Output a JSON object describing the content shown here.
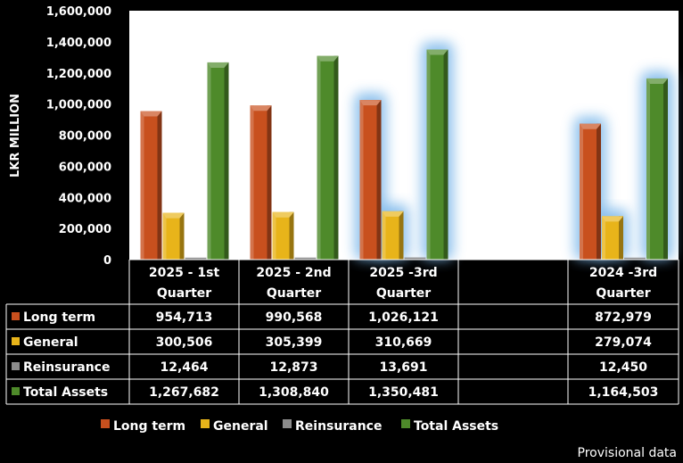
{
  "chart_data": {
    "type": "bar",
    "ylabel": "LKR MILLION",
    "ylim": [
      0,
      1600000
    ],
    "yticks": [
      0,
      200000,
      400000,
      600000,
      800000,
      1000000,
      1200000,
      1400000,
      1600000
    ],
    "ytick_labels": [
      "0",
      "200,000",
      "400,000",
      "600,000",
      "800,000",
      "1,000,000",
      "1,200,000",
      "1,400,000",
      "1,600,000"
    ],
    "grid": false,
    "legend": "bottom",
    "categories": [
      "2025 - 1st Quarter",
      "2025 - 2nd Quarter",
      "2025 -3rd Quarter",
      "",
      "2024 -3rd Quarter"
    ],
    "category_lines": [
      [
        "2025 - 1st",
        "Quarter"
      ],
      [
        "2025 - 2nd",
        "Quarter"
      ],
      [
        "2025 -3rd",
        "Quarter"
      ],
      [
        "",
        ""
      ],
      [
        "2024 -3rd",
        "Quarter"
      ]
    ],
    "series": [
      {
        "name": "Long term",
        "color": "#c8501e",
        "values": [
          954713,
          990568,
          1026121,
          null,
          872979
        ],
        "labels": [
          "954,713",
          "990,568",
          "1,026,121",
          "",
          "872,979"
        ]
      },
      {
        "name": "General",
        "color": "#e8b41a",
        "values": [
          300506,
          305399,
          310669,
          null,
          279074
        ],
        "labels": [
          "300,506",
          "305,399",
          "310,669",
          "",
          "279,074"
        ]
      },
      {
        "name": "Reinsurance",
        "color": "#8c8c8c",
        "values": [
          12464,
          12873,
          13691,
          null,
          12450
        ],
        "labels": [
          "12,464",
          "12,873",
          "13,691",
          "",
          "12,450"
        ]
      },
      {
        "name": "Total Assets",
        "color": "#4e8a2a",
        "values": [
          1267682,
          1308840,
          1350481,
          null,
          1164503
        ],
        "labels": [
          "1,267,682",
          "1,308,840",
          "1,350,481",
          "",
          "1,164,503"
        ]
      }
    ],
    "highlighted_categories": [
      2,
      4
    ]
  },
  "note": "Provisional data"
}
